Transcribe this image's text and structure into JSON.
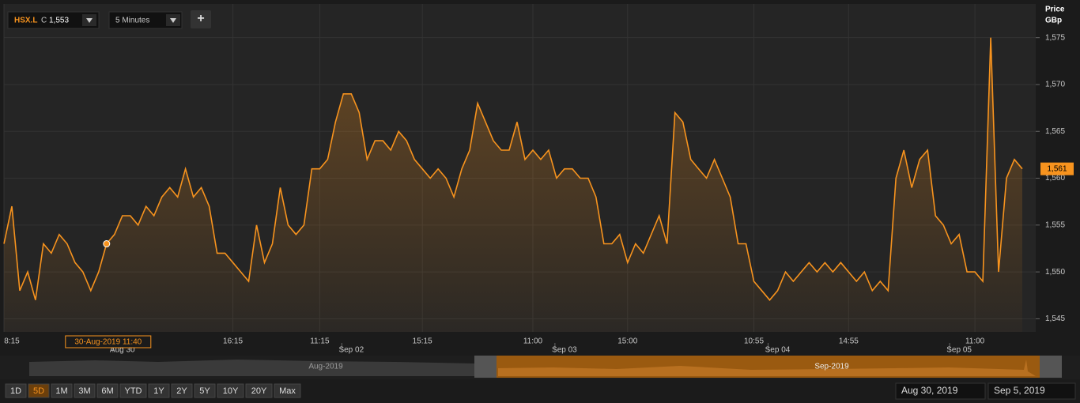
{
  "ui": {
    "symbol": "HSX.L",
    "close_prefix": "C",
    "close_value": "1,553",
    "interval": "5 Minutes",
    "add_button": "+",
    "axis_title": "Price",
    "axis_unit": "GBp",
    "tooltip": "30-Aug-2019 11:40",
    "current_price_label": "1,561",
    "navigator_left": "Aug-2019",
    "navigator_right": "Sep-2019",
    "periods": [
      "1D",
      "5D",
      "1M",
      "3M",
      "6M",
      "YTD",
      "1Y",
      "2Y",
      "5Y",
      "10Y",
      "20Y",
      "Max"
    ],
    "active_period_index": 1,
    "date_from": "Aug 30, 2019",
    "date_to": "Sep 5, 2019"
  },
  "chart_data": {
    "type": "line",
    "grid": true,
    "categories": [
      "8:15",
      null,
      null,
      null,
      null,
      null,
      null,
      null,
      null,
      null,
      null,
      null,
      null,
      null,
      null,
      null,
      null,
      null,
      null,
      null,
      null,
      null,
      null,
      null,
      null,
      null,
      null,
      null,
      null,
      "16:15",
      null,
      null,
      null,
      null,
      null,
      null,
      null,
      null,
      null,
      null,
      "11:15",
      null,
      null,
      null,
      null,
      null,
      null,
      null,
      null,
      null,
      null,
      null,
      null,
      "15:15",
      null,
      null,
      null,
      null,
      null,
      null,
      null,
      null,
      null,
      null,
      null,
      null,
      null,
      "11:00",
      null,
      null,
      null,
      null,
      null,
      null,
      null,
      null,
      null,
      null,
      null,
      "15:00",
      null,
      null,
      null,
      null,
      null,
      null,
      null,
      null,
      null,
      null,
      null,
      null,
      null,
      null,
      null,
      "10:55",
      null,
      null,
      null,
      null,
      null,
      null,
      null,
      null,
      null,
      null,
      null,
      "14:55",
      null,
      null,
      null,
      null,
      null,
      null,
      null,
      null,
      null,
      null,
      null,
      null,
      null,
      null,
      null,
      "11:00",
      null,
      null,
      null,
      null,
      null,
      null
    ],
    "day_categories": [
      null,
      null,
      null,
      null,
      null,
      null,
      null,
      null,
      null,
      null,
      null,
      null,
      null,
      null,
      null,
      "Aug 30",
      null,
      null,
      null,
      null,
      null,
      null,
      null,
      null,
      null,
      null,
      null,
      null,
      null,
      null,
      null,
      null,
      null,
      null,
      null,
      null,
      null,
      null,
      null,
      null,
      null,
      null,
      null,
      null,
      "Sep 02",
      null,
      null,
      null,
      null,
      null,
      null,
      null,
      null,
      null,
      null,
      null,
      null,
      null,
      null,
      null,
      null,
      null,
      null,
      null,
      null,
      null,
      null,
      null,
      null,
      null,
      null,
      "Sep 03",
      null,
      null,
      null,
      null,
      null,
      null,
      null,
      null,
      null,
      null,
      null,
      null,
      null,
      null,
      null,
      null,
      null,
      null,
      null,
      null,
      null,
      null,
      null,
      null,
      null,
      null,
      "Sep 04",
      null,
      null,
      null,
      null,
      null,
      null,
      null,
      null,
      null,
      null,
      null,
      null,
      null,
      null,
      null,
      null,
      null,
      null,
      null,
      null,
      null,
      null,
      "Sep 05",
      null,
      null,
      null,
      null,
      null,
      null,
      null,
      null
    ],
    "series": [
      {
        "name": "HSX.L",
        "color": "#f7931e",
        "values": [
          1553,
          1557,
          1548,
          1550,
          1547,
          1553,
          1552,
          1554,
          1553,
          1551,
          1550,
          1548,
          1550,
          1553,
          1554,
          1556,
          1556,
          1555,
          1557,
          1556,
          1558,
          1559,
          1558,
          1561,
          1558,
          1559,
          1557,
          1552,
          1552,
          1551,
          1550,
          1549,
          1555,
          1551,
          1553,
          1559,
          1555,
          1554,
          1555,
          1561,
          1561,
          1562,
          1566,
          1569,
          1569,
          1567,
          1562,
          1564,
          1564,
          1563,
          1565,
          1564,
          1562,
          1561,
          1560,
          1561,
          1560,
          1558,
          1561,
          1563,
          1568,
          1566,
          1564,
          1563,
          1563,
          1566,
          1562,
          1563,
          1562,
          1563,
          1560,
          1561,
          1561,
          1560,
          1560,
          1558,
          1553,
          1553,
          1554,
          1551,
          1553,
          1552,
          1554,
          1556,
          1553,
          1567,
          1566,
          1562,
          1561,
          1560,
          1562,
          1560,
          1558,
          1553,
          1553,
          1549,
          1548,
          1547,
          1548,
          1550,
          1549,
          1550,
          1551,
          1550,
          1551,
          1550,
          1551,
          1550,
          1549,
          1550,
          1548,
          1549,
          1548,
          1560,
          1563,
          1559,
          1562,
          1563,
          1556,
          1555,
          1553,
          1554,
          1550,
          1550,
          1549,
          1575,
          1550,
          1560,
          1562,
          1561
        ]
      }
    ],
    "highlight_index": 13,
    "ylim": [
      1543.6,
      1578.6
    ],
    "yticks": [
      {
        "value": 1545,
        "label": "1,545"
      },
      {
        "value": 1550,
        "label": "1,550"
      },
      {
        "value": 1555,
        "label": "1,555"
      },
      {
        "value": 1560,
        "label": "1,560"
      },
      {
        "value": 1565,
        "label": "1,565"
      },
      {
        "value": 1570,
        "label": "1,570"
      },
      {
        "value": 1575,
        "label": "1,575"
      }
    ]
  }
}
